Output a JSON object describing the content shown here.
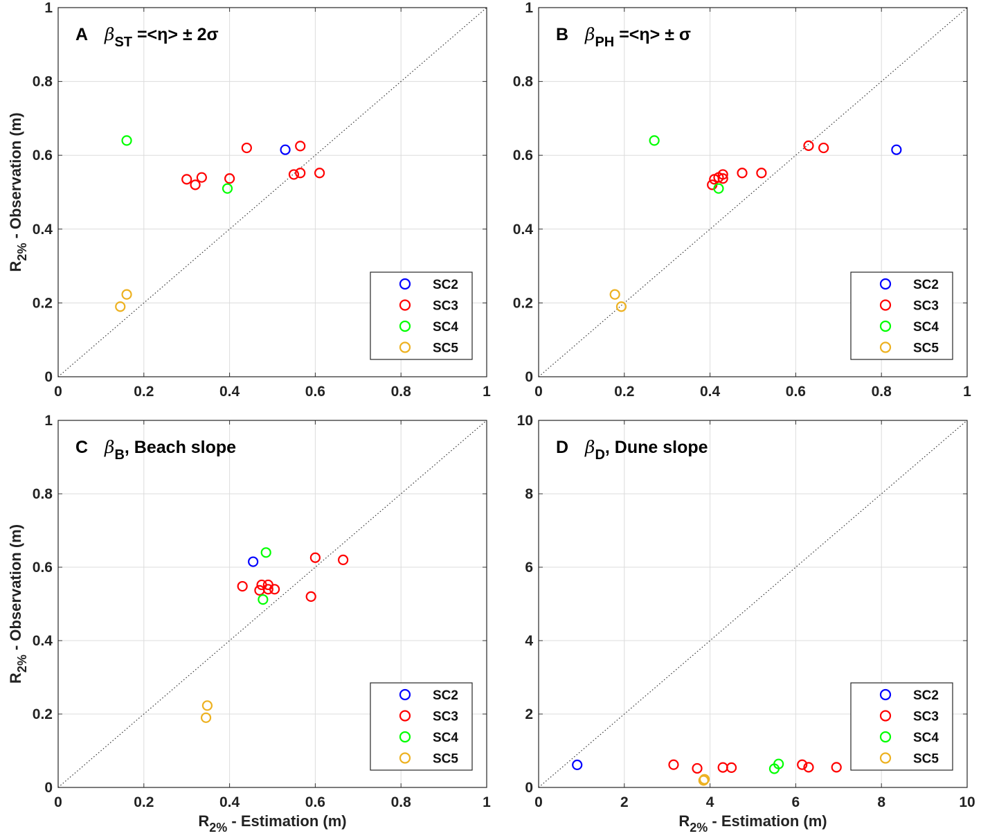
{
  "legend": [
    {
      "label": "SC2",
      "color": "#0000ff"
    },
    {
      "label": "SC3",
      "color": "#ff0000"
    },
    {
      "label": "SC4",
      "color": "#00ff00"
    },
    {
      "label": "SC5",
      "color": "#edb120"
    }
  ],
  "chart_data": [
    {
      "type": "scatter",
      "panel": "A",
      "title": {
        "beta": "β",
        "sub": "ST",
        "rest": " =<η> ± 2σ"
      },
      "xlabel": "",
      "ylabel": "R2% - Observation (m)",
      "xlim": [
        0,
        1
      ],
      "ylim": [
        0,
        1
      ],
      "xticks": [
        "0",
        "0.2",
        "0.4",
        "0.6",
        "0.8",
        "1"
      ],
      "yticks": [
        "0",
        "0.2",
        "0.4",
        "0.6",
        "0.8",
        "1"
      ],
      "grid": true,
      "diagonal": "1:1 line",
      "legend_position": "bottom-right",
      "series": [
        {
          "name": "SC2",
          "points": [
            [
              0.53,
              0.615
            ]
          ]
        },
        {
          "name": "SC3",
          "points": [
            [
              0.3,
              0.535
            ],
            [
              0.32,
              0.52
            ],
            [
              0.335,
              0.54
            ],
            [
              0.4,
              0.537
            ],
            [
              0.44,
              0.62
            ],
            [
              0.565,
              0.625
            ],
            [
              0.55,
              0.548
            ],
            [
              0.565,
              0.552
            ],
            [
              0.61,
              0.552
            ]
          ]
        },
        {
          "name": "SC4",
          "points": [
            [
              0.16,
              0.64
            ],
            [
              0.395,
              0.51
            ]
          ]
        },
        {
          "name": "SC5",
          "points": [
            [
              0.145,
              0.19
            ],
            [
              0.16,
              0.223
            ]
          ]
        }
      ]
    },
    {
      "type": "scatter",
      "panel": "B",
      "title": {
        "beta": "β",
        "sub": "PH",
        "rest": " =<η> ± σ"
      },
      "xlabel": "",
      "ylabel": "",
      "xlim": [
        0,
        1
      ],
      "ylim": [
        0,
        1
      ],
      "xticks": [
        "0",
        "0.2",
        "0.4",
        "0.6",
        "0.8",
        "1"
      ],
      "yticks": [
        "0",
        "0.2",
        "0.4",
        "0.6",
        "0.8",
        "1"
      ],
      "grid": true,
      "diagonal": "1:1 line",
      "legend_position": "bottom-right",
      "series": [
        {
          "name": "SC2",
          "points": [
            [
              0.835,
              0.615
            ]
          ]
        },
        {
          "name": "SC3",
          "points": [
            [
              0.405,
              0.52
            ],
            [
              0.41,
              0.535
            ],
            [
              0.42,
              0.54
            ],
            [
              0.43,
              0.548
            ],
            [
              0.43,
              0.537
            ],
            [
              0.475,
              0.552
            ],
            [
              0.52,
              0.552
            ],
            [
              0.63,
              0.626
            ],
            [
              0.665,
              0.62
            ]
          ]
        },
        {
          "name": "SC4",
          "points": [
            [
              0.27,
              0.64
            ],
            [
              0.42,
              0.51
            ]
          ]
        },
        {
          "name": "SC5",
          "points": [
            [
              0.178,
              0.223
            ],
            [
              0.193,
              0.19
            ]
          ]
        }
      ]
    },
    {
      "type": "scatter",
      "panel": "C",
      "title": {
        "beta": "β",
        "sub": "B",
        "rest": ", Beach slope"
      },
      "xlabel": "R2% - Estimation (m)",
      "ylabel": "R2% - Observation (m)",
      "xlim": [
        0,
        1
      ],
      "ylim": [
        0,
        1
      ],
      "xticks": [
        "0",
        "0.2",
        "0.4",
        "0.6",
        "0.8",
        "1"
      ],
      "yticks": [
        "0",
        "0.2",
        "0.4",
        "0.6",
        "0.8",
        "1"
      ],
      "grid": true,
      "diagonal": "1:1 line",
      "legend_position": "bottom-right",
      "series": [
        {
          "name": "SC2",
          "points": [
            [
              0.455,
              0.615
            ]
          ]
        },
        {
          "name": "SC3",
          "points": [
            [
              0.43,
              0.548
            ],
            [
              0.47,
              0.537
            ],
            [
              0.475,
              0.552
            ],
            [
              0.49,
              0.552
            ],
            [
              0.49,
              0.54
            ],
            [
              0.505,
              0.54
            ],
            [
              0.59,
              0.52
            ],
            [
              0.6,
              0.626
            ],
            [
              0.665,
              0.62
            ]
          ]
        },
        {
          "name": "SC4",
          "points": [
            [
              0.485,
              0.64
            ],
            [
              0.478,
              0.512
            ]
          ]
        },
        {
          "name": "SC5",
          "points": [
            [
              0.348,
              0.223
            ],
            [
              0.345,
              0.19
            ]
          ]
        }
      ]
    },
    {
      "type": "scatter",
      "panel": "D",
      "title": {
        "beta": "β",
        "sub": "D",
        "rest": ", Dune slope"
      },
      "xlabel": "R2% - Estimation (m)",
      "ylabel": "",
      "xlim": [
        0,
        10
      ],
      "ylim": [
        0,
        10
      ],
      "xticks": [
        "0",
        "2",
        "4",
        "6",
        "8",
        "10"
      ],
      "yticks": [
        "0",
        "2",
        "4",
        "6",
        "8",
        "10"
      ],
      "grid": true,
      "diagonal": "1:1 line",
      "legend_position": "bottom-right",
      "series": [
        {
          "name": "SC2",
          "points": [
            [
              0.9,
              0.615
            ]
          ]
        },
        {
          "name": "SC3",
          "points": [
            [
              3.15,
              0.62
            ],
            [
              3.7,
              0.52
            ],
            [
              4.3,
              0.545
            ],
            [
              4.5,
              0.54
            ],
            [
              6.15,
              0.62
            ],
            [
              6.3,
              0.55
            ],
            [
              6.95,
              0.55
            ]
          ]
        },
        {
          "name": "SC4",
          "points": [
            [
              5.5,
              0.51
            ],
            [
              5.6,
              0.64
            ]
          ]
        },
        {
          "name": "SC5",
          "points": [
            [
              3.85,
              0.19
            ],
            [
              3.87,
              0.223
            ]
          ]
        }
      ]
    }
  ]
}
